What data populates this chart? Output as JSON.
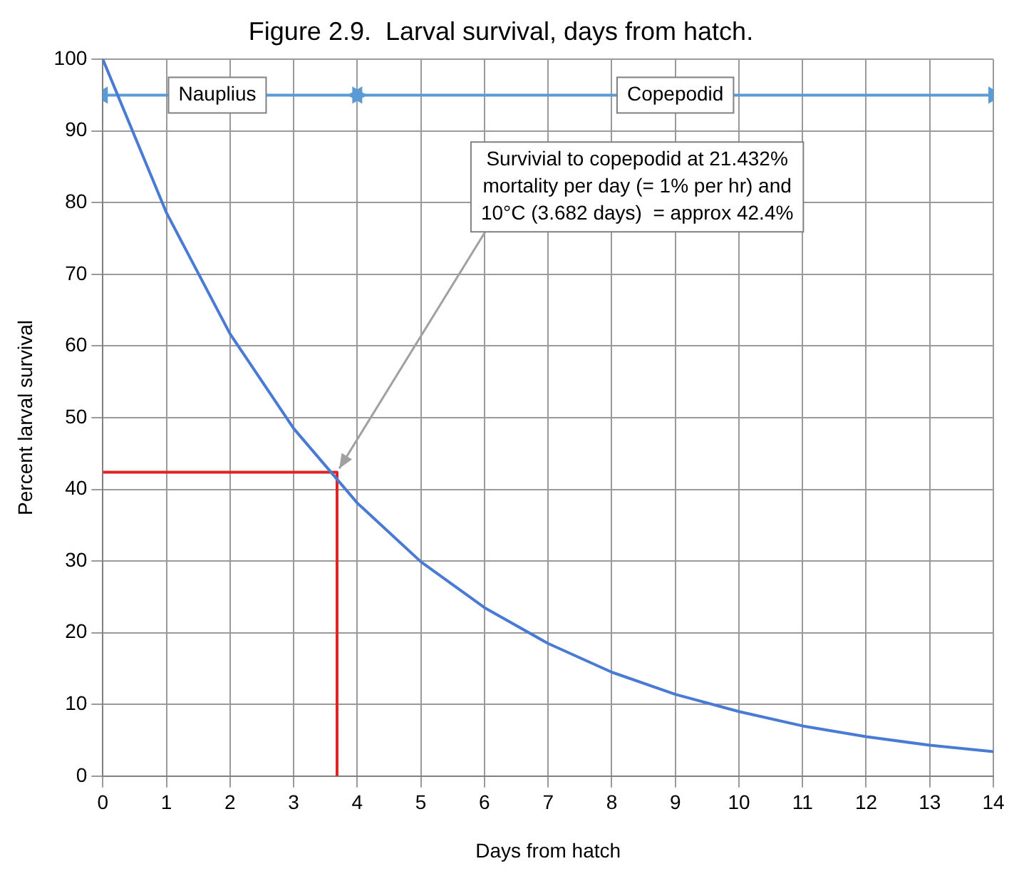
{
  "chart_data": {
    "type": "line",
    "title": "Figure 2.9.  Larval survival, days from hatch.",
    "xlabel": "Days from hatch",
    "ylabel": "Percent larval survival",
    "x": [
      0,
      1,
      2,
      3,
      4,
      5,
      6,
      7,
      8,
      9,
      10,
      11,
      12,
      13,
      14
    ],
    "series": [
      {
        "color": "#4a7bd4",
        "values": [
          100,
          78.6,
          61.7,
          48.5,
          38.1,
          29.9,
          23.5,
          18.5,
          14.5,
          11.4,
          9.0,
          7.0,
          5.5,
          4.3,
          3.4
        ]
      },
      {
        "color": "#e02424",
        "x": [
          0,
          3.682,
          3.682
        ],
        "values": [
          42.4,
          42.4,
          0
        ]
      },
      {
        "color": "#5b9bd5",
        "x": [
          0,
          4
        ],
        "values": [
          95,
          95
        ],
        "marker": "triangle"
      },
      {
        "color": "#5b9bd5",
        "x": [
          4,
          14
        ],
        "values": [
          95,
          95
        ],
        "marker": "triangle"
      }
    ],
    "annotations": [
      {
        "text": "Nauplius",
        "x": 1.8,
        "y": 95
      },
      {
        "text": "Copepodid",
        "x": 9,
        "y": 95
      },
      {
        "text": "Survivial to copepodid at 21.432%\nmortality per day (= 1% per hr) and\n10°C (3.682 days)  = approx 42.4%",
        "x": 3.682,
        "y": 42.4
      }
    ],
    "xlim": [
      0,
      14
    ],
    "xticks": [
      0,
      1,
      2,
      3,
      4,
      5,
      6,
      7,
      8,
      9,
      10,
      11,
      12,
      13,
      14
    ],
    "ylim": [
      0,
      100
    ],
    "yticks": [
      0,
      10,
      20,
      30,
      40,
      50,
      60,
      70,
      80,
      90,
      100
    ],
    "grid": true,
    "marker": "none",
    "line_style": "solid"
  }
}
